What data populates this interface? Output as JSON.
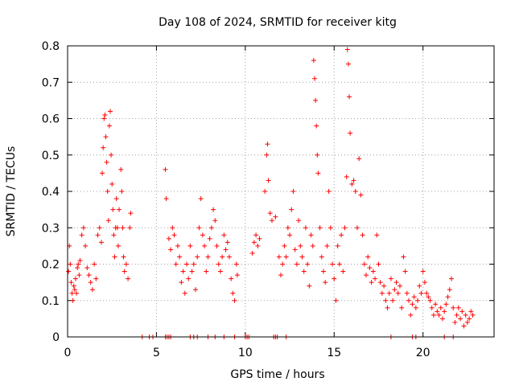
{
  "chart_data": {
    "type": "scatter",
    "title": "Day 108 of 2024, SRMTID for receiver kitg",
    "xlabel": "GPS time / hours",
    "ylabel": "SRMTID / TECUs",
    "xlim": [
      0,
      24
    ],
    "ylim": [
      0,
      0.8
    ],
    "xticks": [
      0,
      5,
      10,
      15,
      20
    ],
    "xtick_labels": [
      "0",
      "5",
      "10",
      "15",
      "20"
    ],
    "yticks": [
      0,
      0.1,
      0.2,
      0.3,
      0.4,
      0.5,
      0.6,
      0.7,
      0.8
    ],
    "ytick_labels": [
      "0",
      "0.1",
      "0.2",
      "0.3",
      "0.4",
      "0.5",
      "0.6",
      "0.7",
      "0.8"
    ],
    "grid": true,
    "marker": "+",
    "color": "#ff0000",
    "series": [
      {
        "name": "SRMTID",
        "points": [
          [
            0.05,
            0.18
          ],
          [
            0.1,
            0.25
          ],
          [
            0.15,
            0.2
          ],
          [
            0.2,
            0.15
          ],
          [
            0.25,
            0.12
          ],
          [
            0.3,
            0.1
          ],
          [
            0.35,
            0.14
          ],
          [
            0.4,
            0.13
          ],
          [
            0.45,
            0.16
          ],
          [
            0.5,
            0.12
          ],
          [
            0.55,
            0.19
          ],
          [
            0.6,
            0.2
          ],
          [
            0.65,
            0.17
          ],
          [
            0.7,
            0.21
          ],
          [
            0.8,
            0.28
          ],
          [
            0.9,
            0.3
          ],
          [
            1.0,
            0.25
          ],
          [
            1.1,
            0.19
          ],
          [
            1.2,
            0.17
          ],
          [
            1.3,
            0.15
          ],
          [
            1.4,
            0.13
          ],
          [
            1.5,
            0.2
          ],
          [
            1.6,
            0.16
          ],
          [
            1.7,
            0.28
          ],
          [
            1.8,
            0.3
          ],
          [
            1.9,
            0.26
          ],
          [
            1.95,
            0.45
          ],
          [
            2.0,
            0.52
          ],
          [
            2.05,
            0.6
          ],
          [
            2.1,
            0.61
          ],
          [
            2.15,
            0.55
          ],
          [
            2.2,
            0.48
          ],
          [
            2.25,
            0.4
          ],
          [
            2.3,
            0.32
          ],
          [
            2.35,
            0.58
          ],
          [
            2.4,
            0.62
          ],
          [
            2.45,
            0.5
          ],
          [
            2.5,
            0.42
          ],
          [
            2.55,
            0.35
          ],
          [
            2.6,
            0.28
          ],
          [
            2.65,
            0.22
          ],
          [
            2.7,
            0.3
          ],
          [
            2.75,
            0.38
          ],
          [
            2.8,
            0.3
          ],
          [
            2.85,
            0.25
          ],
          [
            2.9,
            0.35
          ],
          [
            3.0,
            0.46
          ],
          [
            3.05,
            0.4
          ],
          [
            3.1,
            0.3
          ],
          [
            3.15,
            0.22
          ],
          [
            3.2,
            0.18
          ],
          [
            3.3,
            0.2
          ],
          [
            3.4,
            0.16
          ],
          [
            3.5,
            0.3
          ],
          [
            3.55,
            0.34
          ],
          [
            5.5,
            0.46
          ],
          [
            5.55,
            0.38
          ],
          [
            5.7,
            0.27
          ],
          [
            5.8,
            0.24
          ],
          [
            5.9,
            0.3
          ],
          [
            6.0,
            0.28
          ],
          [
            6.1,
            0.2
          ],
          [
            6.2,
            0.25
          ],
          [
            6.3,
            0.22
          ],
          [
            6.4,
            0.15
          ],
          [
            6.5,
            0.18
          ],
          [
            6.6,
            0.12
          ],
          [
            6.7,
            0.2
          ],
          [
            6.8,
            0.16
          ],
          [
            6.9,
            0.25
          ],
          [
            7.0,
            0.18
          ],
          [
            7.1,
            0.2
          ],
          [
            7.2,
            0.13
          ],
          [
            7.3,
            0.22
          ],
          [
            7.4,
            0.3
          ],
          [
            7.5,
            0.38
          ],
          [
            7.6,
            0.28
          ],
          [
            7.7,
            0.25
          ],
          [
            7.8,
            0.18
          ],
          [
            7.9,
            0.22
          ],
          [
            8.0,
            0.27
          ],
          [
            8.1,
            0.3
          ],
          [
            8.2,
            0.35
          ],
          [
            8.3,
            0.32
          ],
          [
            8.4,
            0.25
          ],
          [
            8.5,
            0.2
          ],
          [
            8.6,
            0.18
          ],
          [
            8.7,
            0.22
          ],
          [
            8.8,
            0.28
          ],
          [
            8.9,
            0.24
          ],
          [
            9.0,
            0.26
          ],
          [
            9.1,
            0.22
          ],
          [
            9.2,
            0.16
          ],
          [
            9.3,
            0.12
          ],
          [
            9.4,
            0.1
          ],
          [
            9.5,
            0.2
          ],
          [
            9.55,
            0.17
          ],
          [
            10.4,
            0.23
          ],
          [
            10.5,
            0.26
          ],
          [
            10.6,
            0.28
          ],
          [
            10.7,
            0.25
          ],
          [
            10.8,
            0.27
          ],
          [
            11.1,
            0.4
          ],
          [
            11.2,
            0.5
          ],
          [
            11.25,
            0.53
          ],
          [
            11.3,
            0.43
          ],
          [
            11.4,
            0.34
          ],
          [
            11.5,
            0.32
          ],
          [
            11.7,
            0.33
          ],
          [
            11.9,
            0.22
          ],
          [
            12.0,
            0.17
          ],
          [
            12.1,
            0.2
          ],
          [
            12.2,
            0.25
          ],
          [
            12.3,
            0.22
          ],
          [
            12.4,
            0.3
          ],
          [
            12.5,
            0.28
          ],
          [
            12.6,
            0.35
          ],
          [
            12.7,
            0.4
          ],
          [
            12.8,
            0.24
          ],
          [
            12.9,
            0.2
          ],
          [
            13.0,
            0.32
          ],
          [
            13.1,
            0.25
          ],
          [
            13.2,
            0.22
          ],
          [
            13.3,
            0.18
          ],
          [
            13.4,
            0.3
          ],
          [
            13.5,
            0.2
          ],
          [
            13.6,
            0.14
          ],
          [
            13.7,
            0.28
          ],
          [
            13.8,
            0.25
          ],
          [
            13.85,
            0.76
          ],
          [
            13.9,
            0.71
          ],
          [
            13.95,
            0.65
          ],
          [
            14.0,
            0.58
          ],
          [
            14.05,
            0.5
          ],
          [
            14.1,
            0.45
          ],
          [
            14.2,
            0.3
          ],
          [
            14.3,
            0.22
          ],
          [
            14.4,
            0.18
          ],
          [
            14.5,
            0.15
          ],
          [
            14.6,
            0.25
          ],
          [
            14.7,
            0.4
          ],
          [
            14.8,
            0.3
          ],
          [
            14.9,
            0.2
          ],
          [
            15.0,
            0.16
          ],
          [
            15.1,
            0.1
          ],
          [
            15.2,
            0.25
          ],
          [
            15.3,
            0.2
          ],
          [
            15.4,
            0.28
          ],
          [
            15.5,
            0.18
          ],
          [
            15.6,
            0.3
          ],
          [
            15.7,
            0.44
          ],
          [
            15.75,
            0.79
          ],
          [
            15.8,
            0.75
          ],
          [
            15.85,
            0.66
          ],
          [
            15.9,
            0.56
          ],
          [
            16.0,
            0.42
          ],
          [
            16.1,
            0.43
          ],
          [
            16.2,
            0.4
          ],
          [
            16.3,
            0.3
          ],
          [
            16.4,
            0.49
          ],
          [
            16.5,
            0.39
          ],
          [
            16.6,
            0.28
          ],
          [
            16.7,
            0.2
          ],
          [
            16.8,
            0.17
          ],
          [
            16.9,
            0.22
          ],
          [
            17.0,
            0.19
          ],
          [
            17.1,
            0.15
          ],
          [
            17.2,
            0.18
          ],
          [
            17.3,
            0.16
          ],
          [
            17.4,
            0.28
          ],
          [
            17.5,
            0.2
          ],
          [
            17.6,
            0.15
          ],
          [
            17.7,
            0.12
          ],
          [
            17.8,
            0.14
          ],
          [
            17.9,
            0.1
          ],
          [
            18.0,
            0.08
          ],
          [
            18.1,
            0.12
          ],
          [
            18.2,
            0.16
          ],
          [
            18.3,
            0.1
          ],
          [
            18.4,
            0.13
          ],
          [
            18.5,
            0.15
          ],
          [
            18.6,
            0.12
          ],
          [
            18.7,
            0.14
          ],
          [
            18.8,
            0.08
          ],
          [
            18.9,
            0.22
          ],
          [
            19.0,
            0.18
          ],
          [
            19.1,
            0.12
          ],
          [
            19.2,
            0.1
          ],
          [
            19.3,
            0.06
          ],
          [
            19.4,
            0.09
          ],
          [
            19.5,
            0.11
          ],
          [
            19.6,
            0.08
          ],
          [
            19.7,
            0.1
          ],
          [
            19.8,
            0.14
          ],
          [
            19.9,
            0.12
          ],
          [
            20.0,
            0.18
          ],
          [
            20.1,
            0.15
          ],
          [
            20.2,
            0.12
          ],
          [
            20.3,
            0.11
          ],
          [
            20.4,
            0.1
          ],
          [
            20.5,
            0.08
          ],
          [
            20.6,
            0.06
          ],
          [
            20.7,
            0.09
          ],
          [
            20.8,
            0.07
          ],
          [
            20.9,
            0.06
          ],
          [
            21.0,
            0.08
          ],
          [
            21.1,
            0.05
          ],
          [
            21.2,
            0.07
          ],
          [
            21.3,
            0.09
          ],
          [
            21.4,
            0.11
          ],
          [
            21.5,
            0.13
          ],
          [
            21.6,
            0.16
          ],
          [
            21.7,
            0.08
          ],
          [
            21.8,
            0.04
          ],
          [
            21.9,
            0.06
          ],
          [
            22.0,
            0.08
          ],
          [
            22.1,
            0.05
          ],
          [
            22.2,
            0.07
          ],
          [
            22.3,
            0.03
          ],
          [
            22.4,
            0.06
          ],
          [
            22.5,
            0.04
          ],
          [
            22.6,
            0.05
          ],
          [
            22.7,
            0.07
          ],
          [
            22.8,
            0.06
          ],
          [
            4.2,
            0.0
          ],
          [
            4.6,
            0.0
          ],
          [
            4.8,
            0.0
          ],
          [
            5.5,
            0.0
          ],
          [
            5.6,
            0.0
          ],
          [
            5.7,
            0.0
          ],
          [
            5.8,
            0.0
          ],
          [
            6.9,
            0.0
          ],
          [
            7.1,
            0.0
          ],
          [
            7.3,
            0.0
          ],
          [
            7.9,
            0.0
          ],
          [
            8.3,
            0.0
          ],
          [
            8.8,
            0.0
          ],
          [
            9.4,
            0.0
          ],
          [
            10.0,
            0.0
          ],
          [
            10.1,
            0.0
          ],
          [
            10.2,
            0.0
          ],
          [
            11.6,
            0.0
          ],
          [
            11.7,
            0.0
          ],
          [
            11.8,
            0.0
          ],
          [
            12.3,
            0.0
          ],
          [
            18.2,
            0.0
          ],
          [
            19.4,
            0.0
          ],
          [
            19.6,
            0.0
          ],
          [
            21.2,
            0.0
          ],
          [
            21.7,
            0.0
          ]
        ]
      }
    ]
  }
}
